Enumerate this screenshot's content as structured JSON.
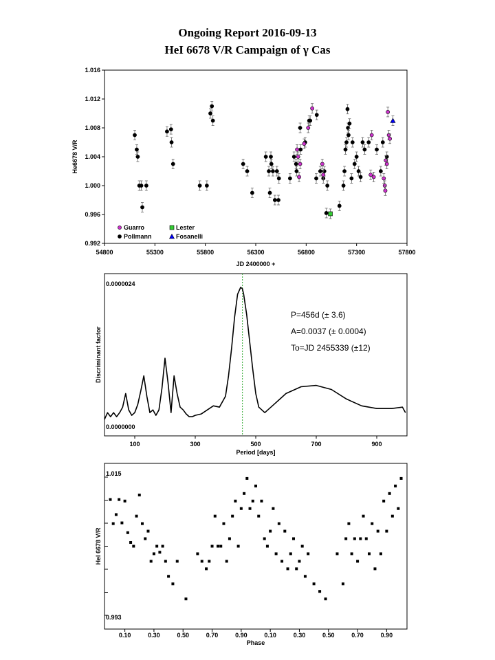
{
  "title_line1": "Ongoing Report 2016-09-13",
  "title_line2": "HeI 6678 V/R Campaign of γ Cas",
  "chart_data": [
    {
      "type": "scatter",
      "xlabel": "JD 2400000 +",
      "ylabel": "He6678 V/R",
      "xlim": [
        54800,
        57800
      ],
      "ylim": [
        0.992,
        1.016
      ],
      "xticks": [
        "54800",
        "55300",
        "55800",
        "56300",
        "56800",
        "57300",
        "57800"
      ],
      "yticks": [
        "0.992",
        "0.996",
        "1.000",
        "1.004",
        "1.008",
        "1.012",
        "1.016"
      ],
      "legend": [
        "Guarro",
        "Lester",
        "Pollmann",
        "Fosanelli"
      ],
      "legend_position": "bottom-left",
      "error_bars": true,
      "series": [
        {
          "name": "Pollmann",
          "marker": "circle",
          "color": "#000000",
          "points": [
            [
              55100,
              1.007
            ],
            [
              55120,
              1.005
            ],
            [
              55130,
              1.004
            ],
            [
              55145,
              1.0
            ],
            [
              55165,
              1.0
            ],
            [
              55175,
              0.997
            ],
            [
              55215,
              1.0
            ],
            [
              55420,
              1.0075
            ],
            [
              55460,
              1.0078
            ],
            [
              55465,
              1.006
            ],
            [
              55480,
              1.003
            ],
            [
              55745,
              1.0
            ],
            [
              55815,
              1.0
            ],
            [
              55850,
              1.01
            ],
            [
              55865,
              1.011
            ],
            [
              55875,
              1.009
            ],
            [
              56175,
              1.003
            ],
            [
              56215,
              1.002
            ],
            [
              56265,
              0.999
            ],
            [
              56400,
              1.004
            ],
            [
              56430,
              1.002
            ],
            [
              56440,
              0.999
            ],
            [
              56450,
              1.004
            ],
            [
              56455,
              1.003
            ],
            [
              56470,
              1.002
            ],
            [
              56490,
              0.998
            ],
            [
              56510,
              1.002
            ],
            [
              56525,
              0.998
            ],
            [
              56530,
              1.001
            ],
            [
              56640,
              1.001
            ],
            [
              56680,
              1.004
            ],
            [
              56700,
              1.003
            ],
            [
              56705,
              1.002
            ],
            [
              56740,
              1.008
            ],
            [
              56745,
              1.005
            ],
            [
              56790,
              1.006
            ],
            [
              56830,
              1.009
            ],
            [
              56840,
              1.009
            ],
            [
              56900,
              1.001
            ],
            [
              56905,
              1.0098
            ],
            [
              56940,
              1.002
            ],
            [
              56970,
              1.001
            ],
            [
              56980,
              1.002
            ],
            [
              57010,
              1.0
            ],
            [
              57000,
              0.9962
            ],
            [
              57130,
              0.9972
            ],
            [
              57170,
              1.0
            ],
            [
              57180,
              1.002
            ],
            [
              57190,
              1.005
            ],
            [
              57200,
              1.006
            ],
            [
              57210,
              1.0106
            ],
            [
              57215,
              1.008
            ],
            [
              57220,
              1.007
            ],
            [
              57230,
              1.0086
            ],
            [
              57250,
              1.001
            ],
            [
              57260,
              1.006
            ],
            [
              57280,
              1.003
            ],
            [
              57300,
              1.004
            ],
            [
              57320,
              1.002
            ],
            [
              57340,
              1.0012
            ],
            [
              57360,
              1.006
            ],
            [
              57380,
              1.005
            ],
            [
              57420,
              1.006
            ],
            [
              57500,
              1.005
            ],
            [
              57540,
              1.002
            ],
            [
              57560,
              1.006
            ],
            [
              57600,
              1.004
            ]
          ]
        },
        {
          "name": "Guarro",
          "marker": "circle",
          "color": "#cc33cc",
          "points": [
            [
              56710,
              1.005
            ],
            [
              56720,
              1.004
            ],
            [
              56730,
              1.0012
            ],
            [
              56740,
              1.003
            ],
            [
              56780,
              1.0058
            ],
            [
              56820,
              1.008
            ],
            [
              56860,
              1.0107
            ],
            [
              56960,
              1.003
            ],
            [
              56970,
              1.0015
            ],
            [
              57440,
              1.0015
            ],
            [
              57450,
              1.007
            ],
            [
              57470,
              1.0012
            ],
            [
              57570,
              1.001
            ],
            [
              57580,
              1.0
            ],
            [
              57585,
              0.9993
            ],
            [
              57590,
              1.0035
            ],
            [
              57600,
              1.003
            ],
            [
              57610,
              1.0102
            ],
            [
              57620,
              1.007
            ],
            [
              57630,
              1.0065
            ]
          ]
        },
        {
          "name": "Lester",
          "marker": "square",
          "color": "#33cc33",
          "points": [
            [
              57040,
              0.9961
            ]
          ]
        },
        {
          "name": "Fosanelli",
          "marker": "triangle",
          "color": "#0000ff",
          "points": [
            [
              57660,
              1.009
            ]
          ]
        }
      ]
    },
    {
      "type": "line",
      "xlabel": "Period [days]",
      "ylabel": "Discriminant factor",
      "xlim": [
        0,
        1000
      ],
      "ylim": [
        0,
        2.4e-06
      ],
      "ymax_label": "0.0000024",
      "ymin_label": "0.0000000",
      "xticks": [
        "100",
        "300",
        "500",
        "700",
        "900"
      ],
      "peak_period": 456,
      "annotations": [
        "P=456d (± 3.6)",
        "A=0.0037 (± 0.0004)",
        "To=JD 2455339 (±12)"
      ],
      "x": [
        0,
        10,
        20,
        30,
        40,
        50,
        60,
        70,
        80,
        90,
        100,
        110,
        120,
        130,
        140,
        150,
        160,
        170,
        180,
        190,
        200,
        210,
        220,
        230,
        240,
        250,
        260,
        270,
        280,
        290,
        300,
        320,
        340,
        360,
        380,
        400,
        410,
        420,
        430,
        440,
        450,
        456,
        460,
        470,
        480,
        490,
        500,
        510,
        520,
        530,
        540,
        560,
        580,
        600,
        650,
        700,
        750,
        800,
        850,
        900,
        950,
        985,
        995
      ],
      "y": [
        0.03,
        0.08,
        0.05,
        0.08,
        0.05,
        0.08,
        0.12,
        0.22,
        0.1,
        0.06,
        0.08,
        0.14,
        0.24,
        0.35,
        0.2,
        0.08,
        0.1,
        0.06,
        0.1,
        0.26,
        0.48,
        0.3,
        0.08,
        0.35,
        0.22,
        0.12,
        0.1,
        0.07,
        0.05,
        0.05,
        0.06,
        0.07,
        0.1,
        0.13,
        0.12,
        0.2,
        0.35,
        0.55,
        0.78,
        0.95,
        1.0,
        0.99,
        0.95,
        0.8,
        0.6,
        0.4,
        0.22,
        0.12,
        0.1,
        0.08,
        0.1,
        0.14,
        0.18,
        0.22,
        0.27,
        0.28,
        0.25,
        0.18,
        0.13,
        0.11,
        0.11,
        0.12,
        0.08
      ]
    },
    {
      "type": "scatter",
      "xlabel": "Phase",
      "ylabel": "HeI 6678 V/R",
      "xlim": [
        -0.04,
        2.04
      ],
      "ylim": [
        0.993,
        1.015
      ],
      "ymax_label": "1.015",
      "ymin_label": "0.993",
      "xticks": [
        "0.10",
        "0.30",
        "0.50",
        "0.70",
        "0.90",
        "0.10",
        "0.30",
        "0.50",
        "0.70",
        "0.90"
      ],
      "points": [
        [
          0.0,
          1.0102
        ],
        [
          0.02,
          1.007
        ],
        [
          0.04,
          1.0082
        ],
        [
          0.06,
          1.0102
        ],
        [
          0.08,
          1.0071
        ],
        [
          0.1,
          1.01
        ],
        [
          0.12,
          1.0058
        ],
        [
          0.14,
          1.0045
        ],
        [
          0.16,
          1.004
        ],
        [
          0.18,
          1.008
        ],
        [
          0.2,
          1.0108
        ],
        [
          0.22,
          1.007
        ],
        [
          0.24,
          1.005
        ],
        [
          0.26,
          1.006
        ],
        [
          0.28,
          1.002
        ],
        [
          0.3,
          1.003
        ],
        [
          0.32,
          1.004
        ],
        [
          0.34,
          1.0032
        ],
        [
          0.36,
          1.004
        ],
        [
          0.38,
          1.002
        ],
        [
          0.4,
          1.0
        ],
        [
          0.43,
          0.999
        ],
        [
          0.46,
          1.002
        ],
        [
          0.52,
          0.997
        ],
        [
          0.6,
          1.003
        ],
        [
          0.63,
          1.002
        ],
        [
          0.66,
          1.001
        ],
        [
          0.68,
          1.002
        ],
        [
          0.7,
          1.004
        ],
        [
          0.72,
          1.008
        ],
        [
          0.74,
          1.004
        ],
        [
          0.76,
          1.004
        ],
        [
          0.78,
          1.007
        ],
        [
          0.8,
          1.002
        ],
        [
          0.82,
          1.005
        ],
        [
          0.84,
          1.008
        ],
        [
          0.86,
          1.01
        ],
        [
          0.88,
          1.004
        ],
        [
          0.9,
          1.009
        ],
        [
          0.92,
          1.011
        ],
        [
          0.94,
          1.013
        ],
        [
          0.96,
          1.009
        ],
        [
          0.98,
          1.01
        ],
        [
          1.0,
          1.012
        ],
        [
          1.02,
          1.008
        ],
        [
          1.04,
          1.01
        ],
        [
          1.06,
          1.005
        ],
        [
          1.08,
          1.004
        ],
        [
          1.1,
          1.006
        ],
        [
          1.12,
          1.009
        ],
        [
          1.14,
          1.003
        ],
        [
          1.16,
          1.007
        ],
        [
          1.18,
          1.002
        ],
        [
          1.2,
          1.006
        ],
        [
          1.22,
          1.001
        ],
        [
          1.24,
          1.003
        ],
        [
          1.26,
          1.005
        ],
        [
          1.28,
          1.001
        ],
        [
          1.3,
          1.002
        ],
        [
          1.32,
          1.004
        ],
        [
          1.34,
          1.0
        ],
        [
          1.36,
          1.003
        ],
        [
          1.4,
          0.999
        ],
        [
          1.44,
          0.998
        ],
        [
          1.48,
          0.997
        ],
        [
          1.56,
          1.003
        ],
        [
          1.6,
          0.999
        ],
        [
          1.62,
          1.005
        ],
        [
          1.64,
          1.007
        ],
        [
          1.66,
          1.003
        ],
        [
          1.68,
          1.005
        ],
        [
          1.7,
          1.002
        ],
        [
          1.72,
          1.005
        ],
        [
          1.74,
          1.008
        ],
        [
          1.76,
          1.005
        ],
        [
          1.78,
          1.003
        ],
        [
          1.8,
          1.007
        ],
        [
          1.82,
          1.001
        ],
        [
          1.84,
          1.006
        ],
        [
          1.86,
          1.003
        ],
        [
          1.88,
          1.01
        ],
        [
          1.9,
          1.006
        ],
        [
          1.92,
          1.011
        ],
        [
          1.94,
          1.008
        ],
        [
          1.96,
          1.012
        ],
        [
          1.98,
          1.009
        ],
        [
          2.0,
          1.013
        ]
      ]
    }
  ]
}
